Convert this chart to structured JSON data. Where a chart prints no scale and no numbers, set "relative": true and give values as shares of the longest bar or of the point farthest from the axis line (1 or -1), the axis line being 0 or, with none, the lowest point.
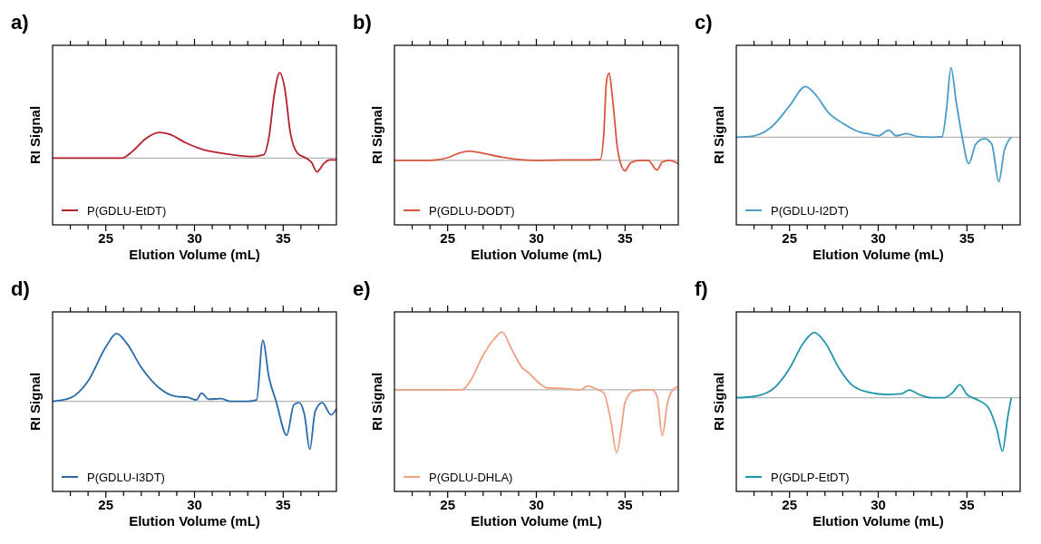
{
  "chart_data": [
    {
      "type": "line",
      "title": "a)",
      "xlabel": "Elution Volume (mL)",
      "ylabel": "RI Signal",
      "relative": true,
      "xlim": [
        22,
        38
      ],
      "xticks": [
        25,
        30,
        35
      ],
      "tick_labels": "x",
      "legend": "bottom left",
      "grid": false,
      "ref_lines": [
        {
          "axis": "y",
          "value": 0,
          "label": null,
          "color": "#b4b4b4"
        }
      ],
      "series": [
        {
          "name": "P(GDLU-EtDT)",
          "color": "#b5212e",
          "x": [
            22,
            25.9,
            26.5,
            27.2,
            28.0,
            28.6,
            29.5,
            30.5,
            31.5,
            32.5,
            33.3,
            33.9,
            34.2,
            34.5,
            34.8,
            35.1,
            35.4,
            35.8,
            36.3,
            36.6,
            36.9,
            37.3,
            37.6,
            38
          ],
          "values": [
            0,
            0,
            0.08,
            0.22,
            0.3,
            0.28,
            0.18,
            0.1,
            0.06,
            0.03,
            0.02,
            0.04,
            0.25,
            0.75,
            1.0,
            0.8,
            0.3,
            0.06,
            0.0,
            -0.05,
            -0.16,
            -0.06,
            -0.02,
            -0.02
          ]
        }
      ]
    },
    {
      "type": "line",
      "title": "b)",
      "xlabel": "Elution Volume (mL)",
      "ylabel": "RI Signal",
      "relative": true,
      "xlim": [
        22,
        38
      ],
      "xticks": [
        25,
        30,
        35
      ],
      "tick_labels": "x",
      "legend": "bottom left",
      "grid": false,
      "ref_lines": [
        {
          "axis": "y",
          "value": 0,
          "label": null,
          "color": "#b4b4b4"
        }
      ],
      "series": [
        {
          "name": "P(GDLU-DODT)",
          "color": "#d9573f",
          "x": [
            22,
            24,
            25,
            25.6,
            26.2,
            27,
            28,
            29,
            30,
            31.5,
            33,
            33.6,
            33.8,
            33.95,
            34.1,
            34.3,
            34.6,
            35.0,
            35.3,
            35.8,
            36.3,
            36.8,
            37.1,
            37.5,
            38
          ],
          "values": [
            0,
            0,
            0.03,
            0.08,
            0.107,
            0.08,
            0.04,
            0.01,
            0,
            0.005,
            0.005,
            0.01,
            0.3,
            0.9,
            1.0,
            0.7,
            0.1,
            -0.12,
            -0.03,
            0,
            0,
            -0.11,
            -0.02,
            0.0,
            -0.04
          ]
        }
      ]
    },
    {
      "type": "line",
      "title": "c)",
      "xlabel": "Elution Volume (mL)",
      "ylabel": "RI Signal",
      "relative": true,
      "xlim": [
        22,
        38
      ],
      "xticks": [
        25,
        30,
        35
      ],
      "tick_labels": "x",
      "legend": "bottom left",
      "grid": false,
      "ref_lines": [
        {
          "axis": "y",
          "value": 0,
          "label": null,
          "color": "#b4b4b4"
        }
      ],
      "series": [
        {
          "name": "P(GDLU-I2DT)",
          "color": "#4a9bc7",
          "x": [
            22,
            23,
            24,
            25,
            25.9,
            26.5,
            27.2,
            28,
            29,
            29.4,
            30.0,
            30.6,
            31.0,
            31.6,
            32.2,
            33,
            33.6,
            33.85,
            34.1,
            34.4,
            34.7,
            35.1,
            35.5,
            36,
            36.4,
            36.8,
            37.1,
            37.5
          ],
          "values": [
            0,
            0.02,
            0.15,
            0.45,
            0.73,
            0.6,
            0.35,
            0.2,
            0.07,
            0.05,
            0.02,
            0.1,
            0.02,
            0.05,
            0.01,
            0,
            0.01,
            0.4,
            1.0,
            0.5,
            0.05,
            -0.38,
            -0.1,
            -0.02,
            -0.1,
            -0.64,
            -0.2,
            0
          ]
        }
      ]
    },
    {
      "type": "line",
      "title": "d)",
      "xlabel": "Elution Volume (mL)",
      "ylabel": "RI Signal",
      "relative": true,
      "xlim": [
        22,
        38
      ],
      "xticks": [
        25,
        30,
        35
      ],
      "tick_labels": "x",
      "legend": "bottom left",
      "grid": false,
      "ref_lines": [
        {
          "axis": "y",
          "value": 0,
          "label": null,
          "color": "#b4b4b4"
        }
      ],
      "series": [
        {
          "name": "P(GDLU-I3DT)",
          "color": "#2b6aa8",
          "x": [
            22,
            23,
            24,
            25,
            25.6,
            26.2,
            27,
            28,
            29,
            29.6,
            30.1,
            30.4,
            30.8,
            31.5,
            32,
            33,
            33.5,
            33.85,
            34.2,
            34.6,
            35.2,
            35.6,
            35.9,
            36.2,
            36.5,
            36.8,
            37.2,
            37.7,
            38
          ],
          "values": [
            0,
            0.05,
            0.3,
            0.8,
            1.0,
            0.85,
            0.5,
            0.2,
            0.07,
            0.06,
            0.02,
            0.12,
            0.03,
            0.04,
            0.0,
            0,
            0.02,
            0.9,
            0.35,
            0.0,
            -0.5,
            -0.05,
            -0.02,
            -0.2,
            -0.71,
            -0.15,
            -0.02,
            -0.2,
            -0.11
          ]
        }
      ]
    },
    {
      "type": "line",
      "title": "e)",
      "xlabel": "Elution Volume (mL)",
      "ylabel": "RI Signal",
      "relative": true,
      "xlim": [
        22,
        38
      ],
      "xticks": [
        25,
        30,
        35
      ],
      "tick_labels": "x",
      "legend": "bottom left",
      "grid": false,
      "ref_lines": [
        {
          "axis": "y",
          "value": 0,
          "label": null,
          "color": "#b4b4b4"
        }
      ],
      "series": [
        {
          "name": "P(GDLU-DHLA)",
          "color": "#f0a184",
          "x": [
            22,
            25.8,
            26.3,
            27,
            27.6,
            28.06,
            28.6,
            29.2,
            29.6,
            30.1,
            30.6,
            31.5,
            32.5,
            32.9,
            33.3,
            33.8,
            34.2,
            34.52,
            34.8,
            35,
            35.5,
            36.5,
            36.8,
            37.1,
            37.4,
            37.7,
            38
          ],
          "values": [
            0,
            0,
            0.15,
            0.55,
            0.8,
            0.92,
            0.65,
            0.35,
            0.26,
            0.12,
            0.03,
            0.02,
            0.0,
            0.06,
            0.02,
            -0.05,
            -0.5,
            -1.0,
            -0.6,
            -0.2,
            -0.02,
            0,
            -0.1,
            -0.73,
            -0.2,
            0,
            0.05
          ]
        }
      ]
    },
    {
      "type": "line",
      "title": "f)",
      "xlabel": "Elution Volume (mL)",
      "ylabel": "RI Signal",
      "relative": true,
      "xlim": [
        22,
        38
      ],
      "xticks": [
        25,
        30,
        35
      ],
      "tick_labels": "x",
      "legend": "bottom left",
      "grid": false,
      "ref_lines": [
        {
          "axis": "y",
          "value": 0,
          "label": null,
          "color": "#b4b4b4"
        }
      ],
      "series": [
        {
          "name": "P(GDLP-EtDT)",
          "color": "#2096ad",
          "x": [
            22,
            23,
            24,
            25,
            25.8,
            26.4,
            27,
            27.8,
            28.5,
            29.5,
            30.5,
            31.3,
            31.75,
            32.3,
            33,
            33.7,
            34.2,
            34.6,
            35,
            35.5,
            36.2,
            36.7,
            37.0,
            37.3,
            37.5
          ],
          "values": [
            0,
            0.02,
            0.12,
            0.45,
            0.85,
            1.0,
            0.85,
            0.45,
            0.2,
            0.08,
            0.05,
            0.06,
            0.12,
            0.05,
            0.0,
            0.0,
            0.08,
            0.2,
            0.05,
            -0.02,
            -0.15,
            -0.5,
            -0.82,
            -0.3,
            0
          ]
        }
      ]
    }
  ]
}
